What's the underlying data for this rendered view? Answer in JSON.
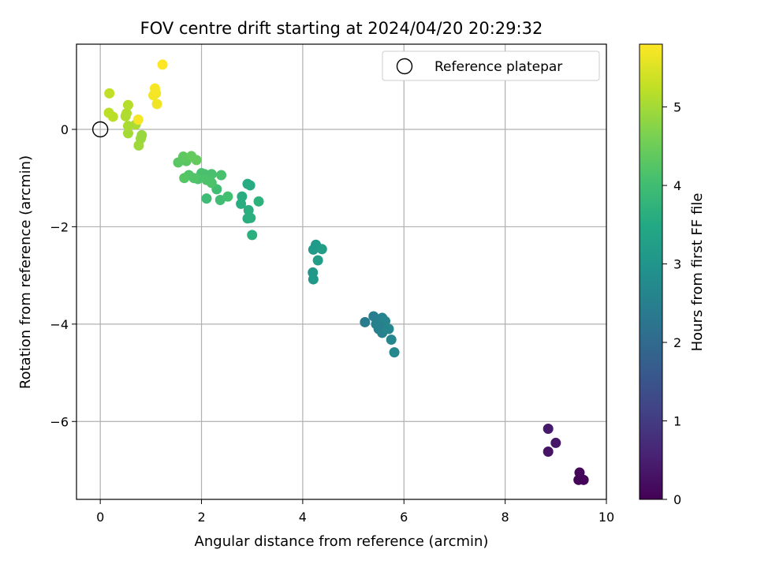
{
  "chart_data": {
    "type": "scatter",
    "title": "FOV centre drift starting at 2024/04/20 20:29:32",
    "xlabel": "Angular distance from reference (arcmin)",
    "ylabel": "Rotation from reference (arcmin)",
    "xlim": [
      -0.47,
      10.0
    ],
    "ylim": [
      -7.6,
      1.75
    ],
    "xticks": [
      0,
      2,
      4,
      6,
      8,
      10
    ],
    "yticks": [
      0,
      -2,
      -4,
      -6
    ],
    "grid": true,
    "legend": {
      "placement": "top-right",
      "entries": [
        "Reference platepar"
      ]
    },
    "colorbar": {
      "label": "Hours from first FF file",
      "min": 0,
      "max": 5.8,
      "ticks": [
        0,
        1,
        2,
        3,
        4,
        5
      ],
      "colormap": "viridis"
    },
    "reference_point": {
      "x": 0,
      "y": 0
    },
    "points": [
      {
        "x": 9.45,
        "y": -7.2,
        "c": 0.05
      },
      {
        "x": 9.55,
        "y": -7.2,
        "c": 0.08
      },
      {
        "x": 9.47,
        "y": -7.05,
        "c": 0.1
      },
      {
        "x": 8.85,
        "y": -6.62,
        "c": 0.3
      },
      {
        "x": 9.0,
        "y": -6.44,
        "c": 0.35
      },
      {
        "x": 8.85,
        "y": -6.15,
        "c": 0.4
      },
      {
        "x": 5.23,
        "y": -3.96,
        "c": 2.4
      },
      {
        "x": 5.4,
        "y": -3.84,
        "c": 2.45
      },
      {
        "x": 5.45,
        "y": -4.0,
        "c": 2.5
      },
      {
        "x": 5.5,
        "y": -4.1,
        "c": 2.5
      },
      {
        "x": 5.57,
        "y": -3.87,
        "c": 2.55
      },
      {
        "x": 5.6,
        "y": -4.02,
        "c": 2.6
      },
      {
        "x": 5.63,
        "y": -3.94,
        "c": 2.6
      },
      {
        "x": 5.57,
        "y": -4.18,
        "c": 2.55
      },
      {
        "x": 5.7,
        "y": -4.1,
        "c": 2.65
      },
      {
        "x": 5.75,
        "y": -4.32,
        "c": 2.65
      },
      {
        "x": 5.81,
        "y": -4.58,
        "c": 2.7
      },
      {
        "x": 5.5,
        "y": -4.05,
        "c": 2.5
      },
      {
        "x": 4.2,
        "y": -2.94,
        "c": 3.05
      },
      {
        "x": 4.21,
        "y": -3.08,
        "c": 3.1
      },
      {
        "x": 4.21,
        "y": -2.47,
        "c": 3.15
      },
      {
        "x": 4.26,
        "y": -2.37,
        "c": 3.15
      },
      {
        "x": 4.3,
        "y": -2.69,
        "c": 3.2
      },
      {
        "x": 4.38,
        "y": -2.46,
        "c": 3.2
      },
      {
        "x": 2.91,
        "y": -1.12,
        "c": 3.55
      },
      {
        "x": 2.96,
        "y": -1.15,
        "c": 3.55
      },
      {
        "x": 2.8,
        "y": -1.38,
        "c": 3.6
      },
      {
        "x": 2.78,
        "y": -1.53,
        "c": 3.6
      },
      {
        "x": 2.93,
        "y": -1.66,
        "c": 3.62
      },
      {
        "x": 2.91,
        "y": -1.83,
        "c": 3.62
      },
      {
        "x": 2.97,
        "y": -1.82,
        "c": 3.65
      },
      {
        "x": 3.0,
        "y": -2.17,
        "c": 3.65
      },
      {
        "x": 3.13,
        "y": -1.48,
        "c": 3.7
      },
      {
        "x": 2.1,
        "y": -1.42,
        "c": 3.95
      },
      {
        "x": 2.3,
        "y": -1.23,
        "c": 4.0
      },
      {
        "x": 2.37,
        "y": -1.45,
        "c": 4.0
      },
      {
        "x": 2.52,
        "y": -1.38,
        "c": 4.05
      },
      {
        "x": 2.39,
        "y": -0.94,
        "c": 4.1
      },
      {
        "x": 2.2,
        "y": -0.92,
        "c": 4.1
      },
      {
        "x": 2.06,
        "y": -0.92,
        "c": 4.1
      },
      {
        "x": 2.0,
        "y": -0.9,
        "c": 4.1
      },
      {
        "x": 2.1,
        "y": -1.04,
        "c": 4.15
      },
      {
        "x": 2.2,
        "y": -1.1,
        "c": 4.15
      },
      {
        "x": 1.93,
        "y": -1.02,
        "c": 4.15
      },
      {
        "x": 1.85,
        "y": -1.0,
        "c": 4.2
      },
      {
        "x": 1.75,
        "y": -0.94,
        "c": 4.2
      },
      {
        "x": 1.66,
        "y": -1.0,
        "c": 4.25
      },
      {
        "x": 1.7,
        "y": -0.65,
        "c": 4.3
      },
      {
        "x": 1.54,
        "y": -0.68,
        "c": 4.3
      },
      {
        "x": 1.64,
        "y": -0.56,
        "c": 4.35
      },
      {
        "x": 1.8,
        "y": -0.55,
        "c": 4.4
      },
      {
        "x": 1.9,
        "y": -0.63,
        "c": 4.4
      },
      {
        "x": 0.82,
        "y": -0.12,
        "c": 4.9
      },
      {
        "x": 0.8,
        "y": -0.19,
        "c": 4.9
      },
      {
        "x": 0.76,
        "y": -0.33,
        "c": 4.95
      },
      {
        "x": 0.55,
        "y": -0.08,
        "c": 5.0
      },
      {
        "x": 0.55,
        "y": 0.07,
        "c": 5.05
      },
      {
        "x": 0.7,
        "y": 0.1,
        "c": 5.05
      },
      {
        "x": 0.5,
        "y": 0.27,
        "c": 5.1
      },
      {
        "x": 0.52,
        "y": 0.33,
        "c": 5.1
      },
      {
        "x": 0.55,
        "y": 0.5,
        "c": 5.15
      },
      {
        "x": 0.17,
        "y": 0.34,
        "c": 5.2
      },
      {
        "x": 0.25,
        "y": 0.26,
        "c": 5.2
      },
      {
        "x": 0.18,
        "y": 0.74,
        "c": 5.25
      },
      {
        "x": 0.75,
        "y": 0.2,
        "c": 5.75
      },
      {
        "x": 1.05,
        "y": 0.7,
        "c": 5.7
      },
      {
        "x": 1.1,
        "y": 0.74,
        "c": 5.72
      },
      {
        "x": 1.08,
        "y": 0.84,
        "c": 5.75
      },
      {
        "x": 1.12,
        "y": 0.52,
        "c": 5.68
      },
      {
        "x": 1.23,
        "y": 1.33,
        "c": 5.8
      }
    ]
  }
}
